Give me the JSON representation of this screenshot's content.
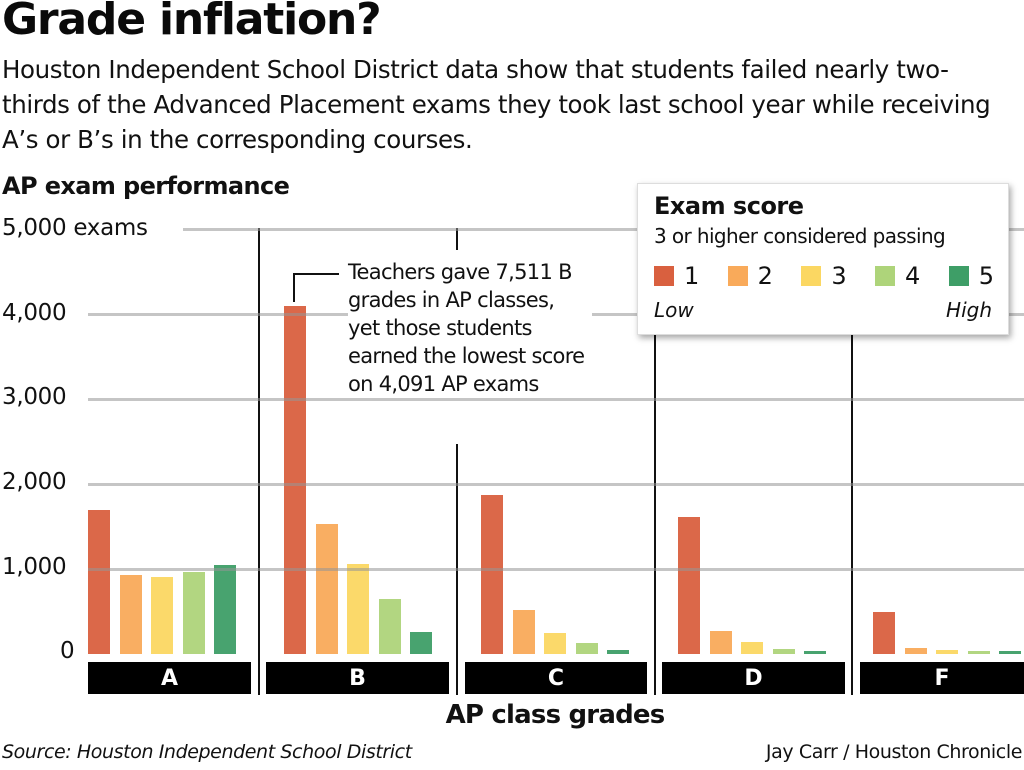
{
  "header": {
    "title": "Grade inflation?",
    "subtitle": "Houston Independent School District data show that students failed nearly two-thirds of the Advanced Placement exams they took last school year while receiving A’s or B’s in the corresponding courses.",
    "chart_heading": "AP exam performance"
  },
  "axis": {
    "y_ticks": [
      "5,000 exams",
      "4,000",
      "3,000",
      "2,000",
      "1,000",
      "0"
    ],
    "x_label": "AP class grades"
  },
  "legend": {
    "title": "Exam score",
    "subtitle": "3 or higher considered passing",
    "items": [
      {
        "label": "1",
        "color": "#D9603F"
      },
      {
        "label": "2",
        "color": "#F9AA5A"
      },
      {
        "label": "3",
        "color": "#FBD762"
      },
      {
        "label": "4",
        "color": "#AED47A"
      },
      {
        "label": "5",
        "color": "#3E9E67"
      }
    ],
    "low_label": "Low",
    "high_label": "High"
  },
  "annotation": {
    "text": "Teachers gave 7,511 B grades in AP classes, yet those students earned the lowest score on 4,091 AP exams"
  },
  "footer": {
    "source": "Source: Houston Independent School District",
    "credit": "Jay Carr / Houston Chronicle"
  },
  "chart_data": {
    "type": "bar",
    "title": "AP exam performance",
    "xlabel": "AP class grades",
    "ylabel": "exams",
    "ylim": [
      0,
      5000
    ],
    "grid": true,
    "legend_position": "top-right",
    "categories": [
      "A",
      "B",
      "C",
      "D",
      "F"
    ],
    "series": [
      {
        "name": "1",
        "color": "#D9603F",
        "values": [
          1690,
          4091,
          1870,
          1610,
          490
        ]
      },
      {
        "name": "2",
        "color": "#F9AA5A",
        "values": [
          930,
          1530,
          520,
          270,
          75
        ]
      },
      {
        "name": "3",
        "color": "#FBD762",
        "values": [
          905,
          1060,
          250,
          140,
          45
        ]
      },
      {
        "name": "4",
        "color": "#AED47A",
        "values": [
          965,
          650,
          130,
          60,
          25
        ]
      },
      {
        "name": "5",
        "color": "#3E9E67",
        "values": [
          1045,
          260,
          45,
          25,
          20
        ]
      }
    ],
    "annotations": [
      "Teachers gave 7,511 B grades in AP classes, yet those students earned the lowest score on 4,091 AP exams"
    ]
  }
}
